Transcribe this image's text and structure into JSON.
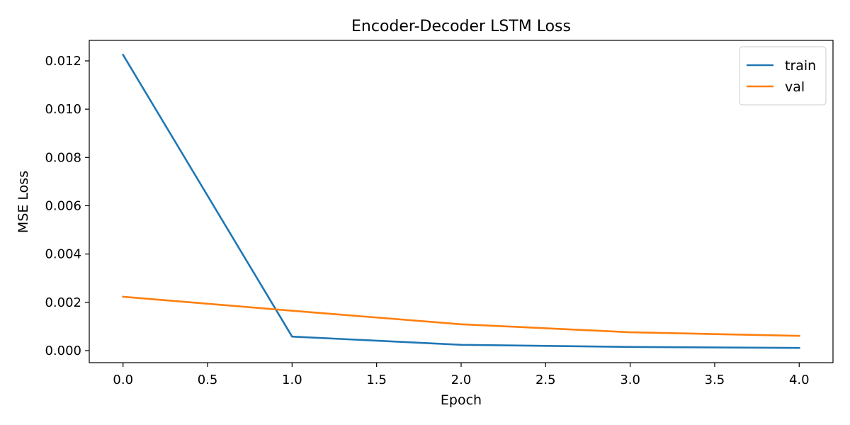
{
  "chart_data": {
    "type": "line",
    "title": "Encoder-Decoder LSTM Loss",
    "xlabel": "Epoch",
    "ylabel": "MSE Loss",
    "x": [
      0,
      1,
      2,
      3,
      4
    ],
    "series": [
      {
        "name": "train",
        "color": "#1f77b4",
        "values": [
          0.01225,
          0.00058,
          0.00024,
          0.00015,
          0.00011
        ]
      },
      {
        "name": "val",
        "color": "#ff7f0e",
        "values": [
          0.00223,
          0.00165,
          0.00109,
          0.00076,
          0.00061
        ]
      }
    ],
    "xlim": [
      -0.2,
      4.2
    ],
    "ylim": [
      -0.0005,
      0.01285
    ],
    "xticks": [
      0.0,
      0.5,
      1.0,
      1.5,
      2.0,
      2.5,
      3.0,
      3.5,
      4.0
    ],
    "xtick_labels": [
      "0.0",
      "0.5",
      "1.0",
      "1.5",
      "2.0",
      "2.5",
      "3.0",
      "3.5",
      "4.0"
    ],
    "yticks": [
      0.0,
      0.002,
      0.004,
      0.006,
      0.008,
      0.01,
      0.012
    ],
    "ytick_labels": [
      "0.000",
      "0.002",
      "0.004",
      "0.006",
      "0.008",
      "0.010",
      "0.012"
    ],
    "grid": false,
    "legend_position": "top-right"
  }
}
